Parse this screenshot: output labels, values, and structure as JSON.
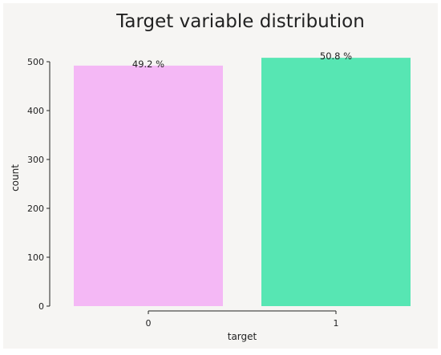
{
  "colors": {
    "background": "#f6f5f3",
    "bar_0": "#f4b8f5",
    "bar_1": "#57e6b3",
    "axis": "#222222"
  },
  "chart_data": {
    "type": "bar",
    "title": "Target variable distribution",
    "xlabel": "target",
    "ylabel": "count",
    "categories": [
      "0",
      "1"
    ],
    "values": [
      492,
      508
    ],
    "data_labels": [
      "49.2 %",
      "50.8 %"
    ],
    "ylim": [
      0,
      500
    ],
    "yticks": [
      0,
      100,
      200,
      300,
      400,
      500
    ],
    "grid": false,
    "legend": "none"
  }
}
